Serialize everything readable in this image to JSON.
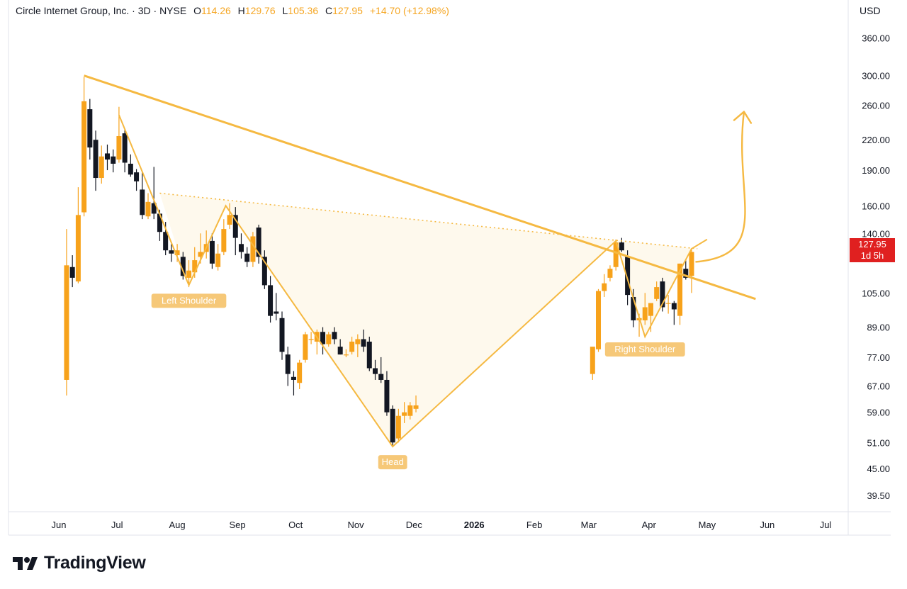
{
  "header": {
    "symbol": "Circle Internet Group, Inc. · 3D · NYSE",
    "open_label": "O",
    "open": "114.26",
    "high_label": "H",
    "high": "129.76",
    "low_label": "L",
    "low": "105.36",
    "close_label": "C",
    "close": "127.95",
    "change": "+14.70 (+12.98%)"
  },
  "price_axis": {
    "currency": "USD"
  },
  "last_price": {
    "value": "127.95",
    "countdown": "1d 5h"
  },
  "brand": {
    "name": "TradingView"
  },
  "colors": {
    "up": "#f7a21b",
    "down": "#131722",
    "pattern": "#f5b942",
    "badge": "#e02020"
  },
  "chart_data": {
    "type": "candlestick",
    "title": "",
    "y_scale": "log",
    "ylim": [
      36.5,
      390
    ],
    "y_ticks": [
      "360.00",
      "300.00",
      "260.00",
      "220.00",
      "190.00",
      "160.00",
      "140.00",
      "105.00",
      "89.00",
      "77.00",
      "67.00",
      "59.00",
      "51.00",
      "45.00",
      "39.50"
    ],
    "x_ticks": [
      "Jun",
      "Jul",
      "Aug",
      "Sep",
      "Oct",
      "Nov",
      "Dec",
      "2026",
      "Feb",
      "Mar",
      "Apr",
      "May",
      "Jun",
      "Jul"
    ],
    "grid": false,
    "candles": [
      {
        "t": "2025-06-05",
        "o": 69,
        "h": 143,
        "l": 64,
        "c": 120
      },
      {
        "t": "2025-06-08",
        "o": 119,
        "h": 126,
        "l": 108,
        "c": 113
      },
      {
        "t": "2025-06-11",
        "o": 111,
        "h": 175,
        "l": 110,
        "c": 153
      },
      {
        "t": "2025-06-14",
        "o": 155,
        "h": 298,
        "l": 152,
        "c": 265
      },
      {
        "t": "2025-06-17",
        "o": 255,
        "h": 268,
        "l": 200,
        "c": 212
      },
      {
        "t": "2025-06-20",
        "o": 220,
        "h": 230,
        "l": 172,
        "c": 183
      },
      {
        "t": "2025-06-23",
        "o": 183,
        "h": 214,
        "l": 178,
        "c": 203
      },
      {
        "t": "2025-06-26",
        "o": 206,
        "h": 215,
        "l": 190,
        "c": 200
      },
      {
        "t": "2025-06-29",
        "o": 203,
        "h": 210,
        "l": 188,
        "c": 196
      },
      {
        "t": "2025-07-02",
        "o": 200,
        "h": 258,
        "l": 197,
        "c": 224
      },
      {
        "t": "2025-07-05",
        "o": 227,
        "h": 232,
        "l": 188,
        "c": 197
      },
      {
        "t": "2025-07-08",
        "o": 196,
        "h": 205,
        "l": 184,
        "c": 186
      },
      {
        "t": "2025-07-11",
        "o": 188,
        "h": 191,
        "l": 172,
        "c": 180
      },
      {
        "t": "2025-07-14",
        "o": 173,
        "h": 188,
        "l": 150,
        "c": 153
      },
      {
        "t": "2025-07-17",
        "o": 152,
        "h": 170,
        "l": 150,
        "c": 163
      },
      {
        "t": "2025-07-20",
        "o": 162,
        "h": 193,
        "l": 150,
        "c": 154
      },
      {
        "t": "2025-07-23",
        "o": 154,
        "h": 157,
        "l": 135,
        "c": 141
      },
      {
        "t": "2025-07-26",
        "o": 141,
        "h": 148,
        "l": 126,
        "c": 129
      },
      {
        "t": "2025-07-29",
        "o": 129,
        "h": 133,
        "l": 122,
        "c": 127
      },
      {
        "t": "2025-08-01",
        "o": 126,
        "h": 133,
        "l": 122,
        "c": 129
      },
      {
        "t": "2025-08-04",
        "o": 125,
        "h": 128,
        "l": 112,
        "c": 114
      },
      {
        "t": "2025-08-07",
        "o": 113,
        "h": 123,
        "l": 108,
        "c": 117
      },
      {
        "t": "2025-08-10",
        "o": 116,
        "h": 131,
        "l": 113,
        "c": 123
      },
      {
        "t": "2025-08-13",
        "o": 125,
        "h": 140,
        "l": 121,
        "c": 128
      },
      {
        "t": "2025-08-16",
        "o": 128,
        "h": 142,
        "l": 124,
        "c": 133
      },
      {
        "t": "2025-08-19",
        "o": 135,
        "h": 140,
        "l": 118,
        "c": 121
      },
      {
        "t": "2025-08-22",
        "o": 119,
        "h": 133,
        "l": 117,
        "c": 127
      },
      {
        "t": "2025-08-25",
        "o": 128,
        "h": 150,
        "l": 126,
        "c": 143
      },
      {
        "t": "2025-08-28",
        "o": 146,
        "h": 162,
        "l": 143,
        "c": 153
      },
      {
        "t": "2025-08-31",
        "o": 153,
        "h": 159,
        "l": 126,
        "c": 137
      },
      {
        "t": "2025-09-03",
        "o": 133,
        "h": 140,
        "l": 124,
        "c": 128
      },
      {
        "t": "2025-09-06",
        "o": 127,
        "h": 131,
        "l": 119,
        "c": 122
      },
      {
        "t": "2025-09-09",
        "o": 122,
        "h": 141,
        "l": 119,
        "c": 138
      },
      {
        "t": "2025-09-12",
        "o": 144,
        "h": 146,
        "l": 121,
        "c": 125
      },
      {
        "t": "2025-09-15",
        "o": 125,
        "h": 129,
        "l": 107,
        "c": 109
      },
      {
        "t": "2025-09-18",
        "o": 109,
        "h": 114,
        "l": 91,
        "c": 94
      },
      {
        "t": "2025-09-21",
        "o": 96,
        "h": 105,
        "l": 92,
        "c": 95
      },
      {
        "t": "2025-09-24",
        "o": 93,
        "h": 96,
        "l": 76,
        "c": 79
      },
      {
        "t": "2025-09-27",
        "o": 78,
        "h": 81,
        "l": 67,
        "c": 71
      },
      {
        "t": "2025-09-30",
        "o": 70,
        "h": 72,
        "l": 64,
        "c": 69
      },
      {
        "t": "2025-10-03",
        "o": 68,
        "h": 76,
        "l": 66,
        "c": 75
      },
      {
        "t": "2025-10-06",
        "o": 76,
        "h": 87,
        "l": 75,
        "c": 86
      },
      {
        "t": "2025-10-09",
        "o": 84,
        "h": 87,
        "l": 82,
        "c": 84
      },
      {
        "t": "2025-10-12",
        "o": 83,
        "h": 88,
        "l": 78,
        "c": 87
      },
      {
        "t": "2025-10-15",
        "o": 87,
        "h": 89,
        "l": 78,
        "c": 82
      },
      {
        "t": "2025-10-18",
        "o": 82,
        "h": 87,
        "l": 81,
        "c": 86
      },
      {
        "t": "2025-10-21",
        "o": 87,
        "h": 89,
        "l": 82,
        "c": 84
      },
      {
        "t": "2025-10-24",
        "o": 81,
        "h": 84,
        "l": 78,
        "c": 78
      },
      {
        "t": "2025-10-27",
        "o": 78,
        "h": 80,
        "l": 77,
        "c": 78
      },
      {
        "t": "2025-10-30",
        "o": 79,
        "h": 85,
        "l": 78,
        "c": 83
      },
      {
        "t": "2025-11-02",
        "o": 82,
        "h": 86,
        "l": 77,
        "c": 84
      },
      {
        "t": "2025-11-05",
        "o": 84,
        "h": 88,
        "l": 79,
        "c": 81
      },
      {
        "t": "2025-11-08",
        "o": 83,
        "h": 85,
        "l": 72,
        "c": 73
      },
      {
        "t": "2025-11-11",
        "o": 73,
        "h": 76,
        "l": 69,
        "c": 71
      },
      {
        "t": "2025-11-14",
        "o": 71,
        "h": 77,
        "l": 68,
        "c": 69
      },
      {
        "t": "2025-11-17",
        "o": 69,
        "h": 72,
        "l": 58,
        "c": 59
      },
      {
        "t": "2025-11-20",
        "o": 60,
        "h": 61,
        "l": 50,
        "c": 51
      },
      {
        "t": "2025-11-23",
        "o": 52,
        "h": 60,
        "l": 51,
        "c": 58
      },
      {
        "t": "2025-11-26",
        "o": 58,
        "h": 62,
        "l": 56,
        "c": 59
      },
      {
        "t": "2025-11-29",
        "o": 58,
        "h": 62,
        "l": 57,
        "c": 61
      },
      {
        "t": "2025-12-02",
        "o": 60,
        "h": 64,
        "l": 59,
        "c": 61
      },
      {
        "t": "2026-03-03",
        "o": 71,
        "h": 80,
        "l": 69,
        "c": 81
      },
      {
        "t": "2026-03-06",
        "o": 80,
        "h": 107,
        "l": 79,
        "c": 106
      },
      {
        "t": "2026-03-09",
        "o": 106,
        "h": 115,
        "l": 103,
        "c": 110
      },
      {
        "t": "2026-03-12",
        "o": 113,
        "h": 120,
        "l": 111,
        "c": 118
      },
      {
        "t": "2026-03-15",
        "o": 119,
        "h": 136,
        "l": 117,
        "c": 134
      },
      {
        "t": "2026-03-18",
        "o": 134,
        "h": 137,
        "l": 128,
        "c": 129
      },
      {
        "t": "2026-03-21",
        "o": 125,
        "h": 129,
        "l": 99,
        "c": 104
      },
      {
        "t": "2026-03-24",
        "o": 103,
        "h": 107,
        "l": 89,
        "c": 92
      },
      {
        "t": "2026-03-27",
        "o": 92,
        "h": 95,
        "l": 85,
        "c": 93
      },
      {
        "t": "2026-03-30",
        "o": 92,
        "h": 105,
        "l": 90,
        "c": 98
      },
      {
        "t": "2026-04-02",
        "o": 94,
        "h": 98,
        "l": 87,
        "c": 100
      },
      {
        "t": "2026-04-05",
        "o": 102,
        "h": 111,
        "l": 101,
        "c": 108
      },
      {
        "t": "2026-04-08",
        "o": 111,
        "h": 113,
        "l": 96,
        "c": 98
      },
      {
        "t": "2026-04-11",
        "o": 100,
        "h": 104,
        "l": 95,
        "c": 100
      },
      {
        "t": "2026-04-14",
        "o": 100,
        "h": 101,
        "l": 90,
        "c": 97
      },
      {
        "t": "2026-04-17",
        "o": 94,
        "h": 121,
        "l": 90,
        "c": 121
      },
      {
        "t": "2026-04-20",
        "o": 118,
        "h": 123,
        "l": 112,
        "c": 113
      },
      {
        "t": "2026-04-23",
        "o": 114,
        "h": 130,
        "l": 105,
        "c": 128
      }
    ],
    "annotations": [
      {
        "text": "Left Shoulder",
        "t": "2025-08-07",
        "price": 109
      },
      {
        "text": "Head",
        "t": "2025-11-20",
        "price": 50
      },
      {
        "text": "Right Shoulder",
        "t": "2026-03-30",
        "price": 85
      }
    ],
    "trendline": {
      "from": {
        "t": "2025-06-14",
        "price": 300
      },
      "to": {
        "t": "2026-05-26",
        "price": 102
      }
    },
    "neckline": {
      "from": {
        "t": "2025-07-23",
        "price": 170
      },
      "to": {
        "t": "2026-04-26",
        "price": 130
      }
    },
    "projection_arrow": {
      "from": {
        "t": "2026-04-25",
        "price": 122
      },
      "to": {
        "t": "2026-05-20",
        "price": 252
      }
    }
  }
}
